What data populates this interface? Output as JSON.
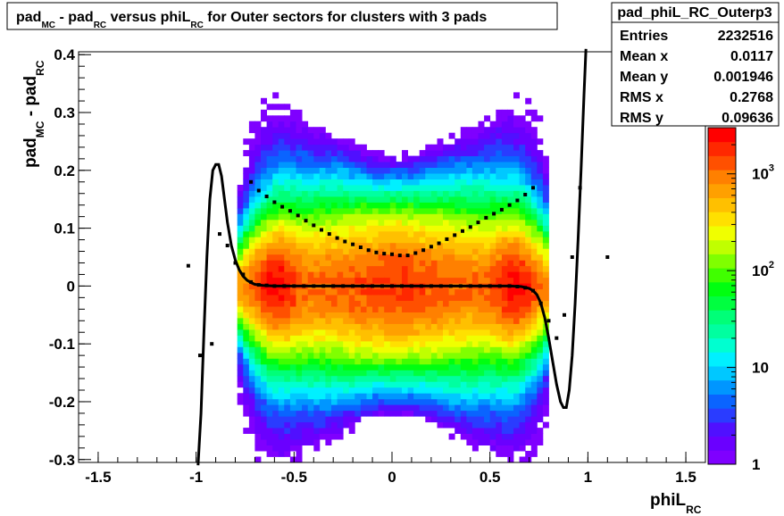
{
  "chart_data": {
    "type": "heatmap",
    "title": {
      "parts": [
        {
          "t": "pad",
          "s": "n"
        },
        {
          "t": "MC",
          "s": "sub"
        },
        {
          "t": " - pad",
          "s": "n"
        },
        {
          "t": "RC",
          "s": "sub"
        },
        {
          "t": " versus phiL",
          "s": "n"
        },
        {
          "t": "RC",
          "s": "sub"
        },
        {
          "t": " for Outer sectors for clusters with 3 pads",
          "s": "n"
        }
      ]
    },
    "xlabel": {
      "main": "phiL",
      "sub": "RC"
    },
    "ylabel": {
      "parts": [
        {
          "t": "pad",
          "s": "n"
        },
        {
          "t": "MC",
          "s": "sub"
        },
        {
          "t": " - pad",
          "s": "n"
        },
        {
          "t": "RC",
          "s": "sub"
        }
      ]
    },
    "xlim": [
      -1.6,
      1.6
    ],
    "ylim": [
      -0.305,
      0.405
    ],
    "x_ticks": [
      {
        "v": -1.5,
        "label": "-1.5"
      },
      {
        "v": -1,
        "label": "-1"
      },
      {
        "v": -0.5,
        "label": "-0.5"
      },
      {
        "v": 0,
        "label": "0"
      },
      {
        "v": 0.5,
        "label": "0.5"
      },
      {
        "v": 1,
        "label": "1"
      },
      {
        "v": 1.5,
        "label": "1.5"
      }
    ],
    "y_ticks": [
      {
        "v": -0.3,
        "label": "-0.3"
      },
      {
        "v": -0.2,
        "label": "-0.2"
      },
      {
        "v": -0.1,
        "label": "-0.1"
      },
      {
        "v": 0,
        "label": "0"
      },
      {
        "v": 0.1,
        "label": "0.1"
      },
      {
        "v": 0.2,
        "label": "0.2"
      },
      {
        "v": 0.3,
        "label": "0.3"
      },
      {
        "v": 0.4,
        "label": "0.4"
      }
    ],
    "z_scale": "log",
    "z_range": [
      1,
      3000
    ],
    "z_ticks": [
      {
        "v": 1,
        "label": "1"
      },
      {
        "v": 10,
        "label": "10"
      },
      {
        "v": 100,
        "label": "10",
        "exp": "2"
      },
      {
        "v": 1000,
        "label": "10",
        "exp": "3"
      }
    ],
    "palette": [
      "#7f00ff",
      "#6a00ff",
      "#5010ff",
      "#2a3cff",
      "#0a64ff",
      "#0096ff",
      "#00c8ff",
      "#00f0ff",
      "#00ffd0",
      "#00ffa0",
      "#00ff78",
      "#00ff40",
      "#00ff10",
      "#40ff00",
      "#80ff00",
      "#c0ff00",
      "#f0ff00",
      "#ffe000",
      "#ffc000",
      "#ffa000",
      "#ff8000",
      "#ff5000",
      "#ff2800",
      "#ff0000"
    ],
    "stats": {
      "name": "pad_phiL_RC_Outerp3",
      "rows": [
        {
          "label": "Entries",
          "value": "2232516"
        },
        {
          "label": "Mean x",
          "value": "0.0117"
        },
        {
          "label": "Mean y",
          "value": "0.001946"
        },
        {
          "label": "RMS x",
          "value": "0.2768"
        },
        {
          "label": "RMS y",
          "value": "0.09636"
        }
      ]
    },
    "profile_upper": [
      {
        "x": -0.72,
        "y": 0.18
      },
      {
        "x": -0.68,
        "y": 0.165
      },
      {
        "x": -0.64,
        "y": 0.155
      },
      {
        "x": -0.6,
        "y": 0.145
      },
      {
        "x": -0.56,
        "y": 0.137
      },
      {
        "x": -0.52,
        "y": 0.13
      },
      {
        "x": -0.48,
        "y": 0.122
      },
      {
        "x": -0.44,
        "y": 0.113
      },
      {
        "x": -0.4,
        "y": 0.105
      },
      {
        "x": -0.36,
        "y": 0.097
      },
      {
        "x": -0.32,
        "y": 0.09
      },
      {
        "x": -0.28,
        "y": 0.083
      },
      {
        "x": -0.24,
        "y": 0.077
      },
      {
        "x": -0.2,
        "y": 0.072
      },
      {
        "x": -0.16,
        "y": 0.067
      },
      {
        "x": -0.12,
        "y": 0.062
      },
      {
        "x": -0.08,
        "y": 0.058
      },
      {
        "x": -0.04,
        "y": 0.056
      },
      {
        "x": 0.0,
        "y": 0.055
      },
      {
        "x": 0.04,
        "y": 0.053
      },
      {
        "x": 0.08,
        "y": 0.053
      },
      {
        "x": 0.12,
        "y": 0.057
      },
      {
        "x": 0.16,
        "y": 0.062
      },
      {
        "x": 0.2,
        "y": 0.068
      },
      {
        "x": 0.24,
        "y": 0.074
      },
      {
        "x": 0.28,
        "y": 0.081
      },
      {
        "x": 0.32,
        "y": 0.088
      },
      {
        "x": 0.36,
        "y": 0.095
      },
      {
        "x": 0.4,
        "y": 0.102
      },
      {
        "x": 0.44,
        "y": 0.11
      },
      {
        "x": 0.48,
        "y": 0.118
      },
      {
        "x": 0.52,
        "y": 0.125
      },
      {
        "x": 0.56,
        "y": 0.132
      },
      {
        "x": 0.6,
        "y": 0.14
      },
      {
        "x": 0.64,
        "y": 0.148
      },
      {
        "x": 0.68,
        "y": 0.158
      },
      {
        "x": 0.72,
        "y": 0.17
      }
    ],
    "profile_center": [
      {
        "x": -0.92,
        "y": -0.1
      },
      {
        "x": -0.88,
        "y": 0.09
      },
      {
        "x": -0.84,
        "y": 0.07
      },
      {
        "x": -0.8,
        "y": 0.04
      },
      {
        "x": -0.76,
        "y": 0.02
      },
      {
        "x": -0.72,
        "y": 0.007
      },
      {
        "x": -0.68,
        "y": 0.002
      },
      {
        "x": -0.64,
        "y": 0.001
      },
      {
        "x": -0.6,
        "y": 0.0
      },
      {
        "x": -0.55,
        "y": 0.0
      },
      {
        "x": -0.5,
        "y": 0.0
      },
      {
        "x": -0.45,
        "y": 0.0
      },
      {
        "x": -0.4,
        "y": 0.0
      },
      {
        "x": -0.35,
        "y": 0.0
      },
      {
        "x": -0.3,
        "y": 0.0
      },
      {
        "x": -0.25,
        "y": 0.0
      },
      {
        "x": -0.2,
        "y": 0.0
      },
      {
        "x": -0.15,
        "y": 0.0
      },
      {
        "x": -0.1,
        "y": 0.0
      },
      {
        "x": -0.05,
        "y": 0.0
      },
      {
        "x": 0.0,
        "y": 0.0
      },
      {
        "x": 0.05,
        "y": 0.0
      },
      {
        "x": 0.1,
        "y": 0.0
      },
      {
        "x": 0.15,
        "y": 0.0
      },
      {
        "x": 0.2,
        "y": 0.0
      },
      {
        "x": 0.25,
        "y": 0.0
      },
      {
        "x": 0.3,
        "y": 0.0
      },
      {
        "x": 0.35,
        "y": 0.0
      },
      {
        "x": 0.4,
        "y": 0.0
      },
      {
        "x": 0.45,
        "y": 0.0
      },
      {
        "x": 0.5,
        "y": 0.0
      },
      {
        "x": 0.55,
        "y": 0.0
      },
      {
        "x": 0.6,
        "y": 0.0
      },
      {
        "x": 0.64,
        "y": -0.001
      },
      {
        "x": 0.68,
        "y": -0.003
      },
      {
        "x": 0.72,
        "y": -0.008
      },
      {
        "x": 0.76,
        "y": -0.03
      },
      {
        "x": 0.8,
        "y": -0.06
      },
      {
        "x": 0.84,
        "y": -0.09
      },
      {
        "x": 0.88,
        "y": -0.05
      },
      {
        "x": 0.92,
        "y": 0.05
      },
      {
        "x": -1.04,
        "y": 0.035
      },
      {
        "x": 1.1,
        "y": 0.05
      },
      {
        "x": -0.98,
        "y": -0.12
      },
      {
        "x": 0.96,
        "y": 0.17
      }
    ],
    "fit_curve": [
      {
        "x": -0.99,
        "y": -0.31
      },
      {
        "x": -0.975,
        "y": -0.22
      },
      {
        "x": -0.96,
        "y": -0.08
      },
      {
        "x": -0.945,
        "y": 0.05
      },
      {
        "x": -0.93,
        "y": 0.15
      },
      {
        "x": -0.915,
        "y": 0.2
      },
      {
        "x": -0.9,
        "y": 0.21
      },
      {
        "x": -0.885,
        "y": 0.21
      },
      {
        "x": -0.87,
        "y": 0.19
      },
      {
        "x": -0.855,
        "y": 0.15
      },
      {
        "x": -0.84,
        "y": 0.11
      },
      {
        "x": -0.82,
        "y": 0.07
      },
      {
        "x": -0.8,
        "y": 0.045
      },
      {
        "x": -0.78,
        "y": 0.028
      },
      {
        "x": -0.76,
        "y": 0.017
      },
      {
        "x": -0.74,
        "y": 0.01
      },
      {
        "x": -0.72,
        "y": 0.006
      },
      {
        "x": -0.7,
        "y": 0.003
      },
      {
        "x": -0.66,
        "y": 0.001
      },
      {
        "x": -0.6,
        "y": 0.0
      },
      {
        "x": -0.4,
        "y": 0.0
      },
      {
        "x": -0.2,
        "y": 0.0
      },
      {
        "x": 0.0,
        "y": 0.0
      },
      {
        "x": 0.2,
        "y": 0.0
      },
      {
        "x": 0.4,
        "y": 0.0
      },
      {
        "x": 0.6,
        "y": 0.0
      },
      {
        "x": 0.66,
        "y": -0.001
      },
      {
        "x": 0.7,
        "y": -0.004
      },
      {
        "x": 0.72,
        "y": -0.008
      },
      {
        "x": 0.74,
        "y": -0.015
      },
      {
        "x": 0.76,
        "y": -0.03
      },
      {
        "x": 0.78,
        "y": -0.055
      },
      {
        "x": 0.8,
        "y": -0.09
      },
      {
        "x": 0.82,
        "y": -0.13
      },
      {
        "x": 0.84,
        "y": -0.17
      },
      {
        "x": 0.86,
        "y": -0.2
      },
      {
        "x": 0.875,
        "y": -0.21
      },
      {
        "x": 0.89,
        "y": -0.21
      },
      {
        "x": 0.905,
        "y": -0.18
      },
      {
        "x": 0.92,
        "y": -0.12
      },
      {
        "x": 0.935,
        "y": -0.03
      },
      {
        "x": 0.95,
        "y": 0.08
      },
      {
        "x": 0.965,
        "y": 0.2
      },
      {
        "x": 0.98,
        "y": 0.33
      },
      {
        "x": 0.99,
        "y": 0.41
      }
    ]
  }
}
